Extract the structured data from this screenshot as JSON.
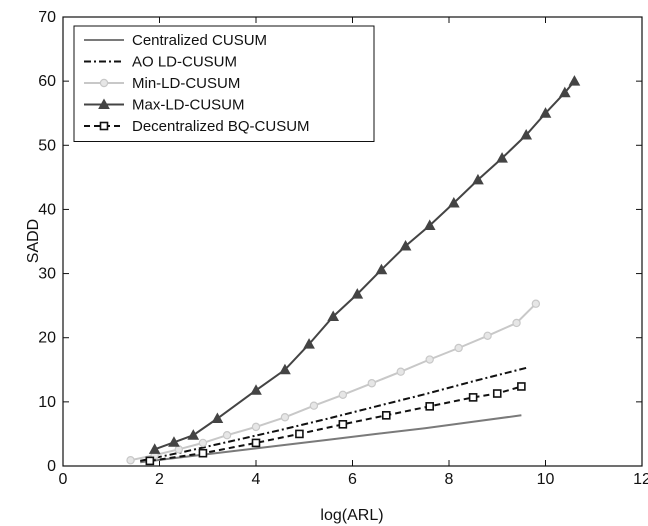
{
  "chart_data": {
    "type": "line",
    "title": "",
    "xlabel": "log(ARL)",
    "ylabel": "SADD",
    "xlim": [
      0,
      12
    ],
    "ylim": [
      0,
      70
    ],
    "xticks": [
      0,
      2,
      4,
      6,
      8,
      10,
      12
    ],
    "yticks": [
      0,
      10,
      20,
      30,
      40,
      50,
      60,
      70
    ],
    "grid": false,
    "legend_position": "top-left",
    "series": [
      {
        "name": "Centralized CUSUM",
        "color": "#7a7a7a",
        "dash": "solid",
        "marker": "none",
        "x": [
          1.6,
          2.5,
          3.5,
          4.5,
          5.5,
          6.5,
          7.5,
          8.5,
          9.5
        ],
        "y": [
          0.6,
          1.4,
          2.3,
          3.2,
          4.1,
          5.0,
          5.9,
          6.9,
          7.9
        ]
      },
      {
        "name": "AO LD-CUSUM",
        "color": "#111111",
        "dash": "dashdot",
        "marker": "none",
        "x": [
          1.6,
          2.5,
          3.5,
          4.5,
          5.5,
          6.5,
          7.5,
          8.5,
          9.6
        ],
        "y": [
          0.8,
          2.2,
          3.9,
          5.6,
          7.4,
          9.3,
          11.2,
          13.2,
          15.3
        ]
      },
      {
        "name": "Min-LD-CUSUM",
        "color": "#c8c8c8",
        "dash": "solid",
        "marker": "circle",
        "x": [
          1.4,
          1.9,
          2.4,
          2.9,
          3.4,
          4.0,
          4.6,
          5.2,
          5.8,
          6.4,
          7.0,
          7.6,
          8.2,
          8.8,
          9.4,
          9.8
        ],
        "y": [
          0.9,
          1.7,
          2.6,
          3.6,
          4.8,
          6.1,
          7.6,
          9.4,
          11.1,
          12.9,
          14.7,
          16.6,
          18.4,
          20.3,
          22.3,
          25.3
        ]
      },
      {
        "name": "Max-LD-CUSUM",
        "color": "#444444",
        "dash": "solid",
        "marker": "triangle",
        "x": [
          1.9,
          2.3,
          2.7,
          3.2,
          4.0,
          4.6,
          5.1,
          5.6,
          6.1,
          6.6,
          7.1,
          7.6,
          8.1,
          8.6,
          9.1,
          9.6,
          10.0,
          10.4,
          10.6
        ],
        "y": [
          2.6,
          3.7,
          4.8,
          7.4,
          11.8,
          15.0,
          19.0,
          23.3,
          26.8,
          30.6,
          34.3,
          37.5,
          41.0,
          44.6,
          48.0,
          51.6,
          55.0,
          58.2,
          60.0
        ]
      },
      {
        "name": "Decentralized BQ-CUSUM",
        "color": "#111111",
        "dash": "dashed",
        "marker": "square",
        "x": [
          1.8,
          2.9,
          4.0,
          4.9,
          5.8,
          6.7,
          7.6,
          8.5,
          9.0,
          9.5
        ],
        "y": [
          0.8,
          2.0,
          3.6,
          5.0,
          6.5,
          7.9,
          9.3,
          10.7,
          11.3,
          12.4
        ]
      }
    ]
  }
}
